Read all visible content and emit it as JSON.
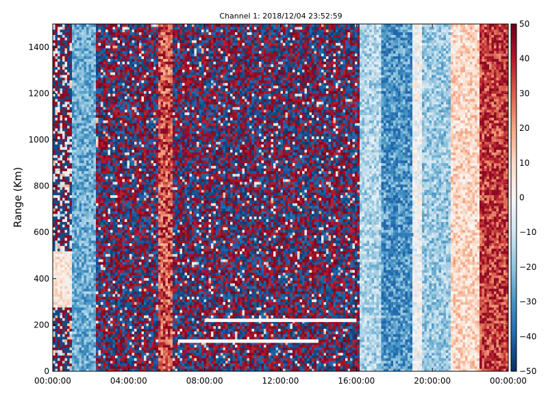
{
  "chart_data": {
    "type": "heatmap",
    "title": "Channel 1: 2018/12/04 23:52:59",
    "ylabel": "Range (Km)",
    "xlabel": "",
    "x_ticks": [
      "00:00:00",
      "04:00:00",
      "08:00:00",
      "12:00:00",
      "16:00:00",
      "20:00:00",
      "00:00:00"
    ],
    "x_range_hours": [
      0,
      24
    ],
    "y_ticks": [
      0,
      200,
      400,
      600,
      800,
      1000,
      1200,
      1400
    ],
    "ylim": [
      0,
      1500
    ],
    "colorbar": {
      "ticks": [
        50,
        40,
        30,
        20,
        10,
        0,
        -10,
        -20,
        -30,
        -40,
        -50
      ],
      "range": [
        -50,
        50
      ],
      "colormap": "RdBu_r",
      "colors": [
        "#053061",
        "#2166ac",
        "#4393c3",
        "#92c5de",
        "#d1e5f0",
        "#f7f7f7",
        "#fddbc7",
        "#f4a582",
        "#d6604d",
        "#b2182b",
        "#67001f"
      ]
    },
    "bands": [
      {
        "from_hour": 0.0,
        "to_hour": 1.0,
        "pattern": "mixed",
        "mean": -5
      },
      {
        "from_hour": 1.0,
        "to_hour": 2.3,
        "pattern": "smooth",
        "mean": -25
      },
      {
        "from_hour": 2.3,
        "to_hour": 5.5,
        "pattern": "noise",
        "mean": 0
      },
      {
        "from_hour": 5.5,
        "to_hour": 6.3,
        "pattern": "smooth",
        "mean": 28
      },
      {
        "from_hour": 6.3,
        "to_hour": 16.2,
        "pattern": "noise",
        "mean": 0
      },
      {
        "from_hour": 16.2,
        "to_hour": 17.3,
        "pattern": "smooth",
        "mean": -15
      },
      {
        "from_hour": 17.3,
        "to_hour": 19.0,
        "pattern": "smooth",
        "mean": -28
      },
      {
        "from_hour": 19.0,
        "to_hour": 19.5,
        "pattern": "smooth",
        "mean": -2
      },
      {
        "from_hour": 19.5,
        "to_hour": 21.0,
        "pattern": "smooth",
        "mean": -18
      },
      {
        "from_hour": 21.0,
        "to_hour": 22.5,
        "pattern": "smooth",
        "mean": 10
      },
      {
        "from_hour": 22.5,
        "to_hour": 24.0,
        "pattern": "smooth",
        "mean": 32
      }
    ],
    "features": [
      {
        "name": "white-arc-lower",
        "hour_from": 6.6,
        "hour_to": 14.0,
        "km": 130,
        "value": 0
      },
      {
        "name": "white-arc-upper",
        "hour_from": 8.0,
        "hour_to": 16.0,
        "km": 220,
        "value": 0
      },
      {
        "name": "blue-streak",
        "hour_from": 18.1,
        "hour_to": 19.0,
        "km": 590,
        "value": -35
      }
    ],
    "grid": false
  }
}
